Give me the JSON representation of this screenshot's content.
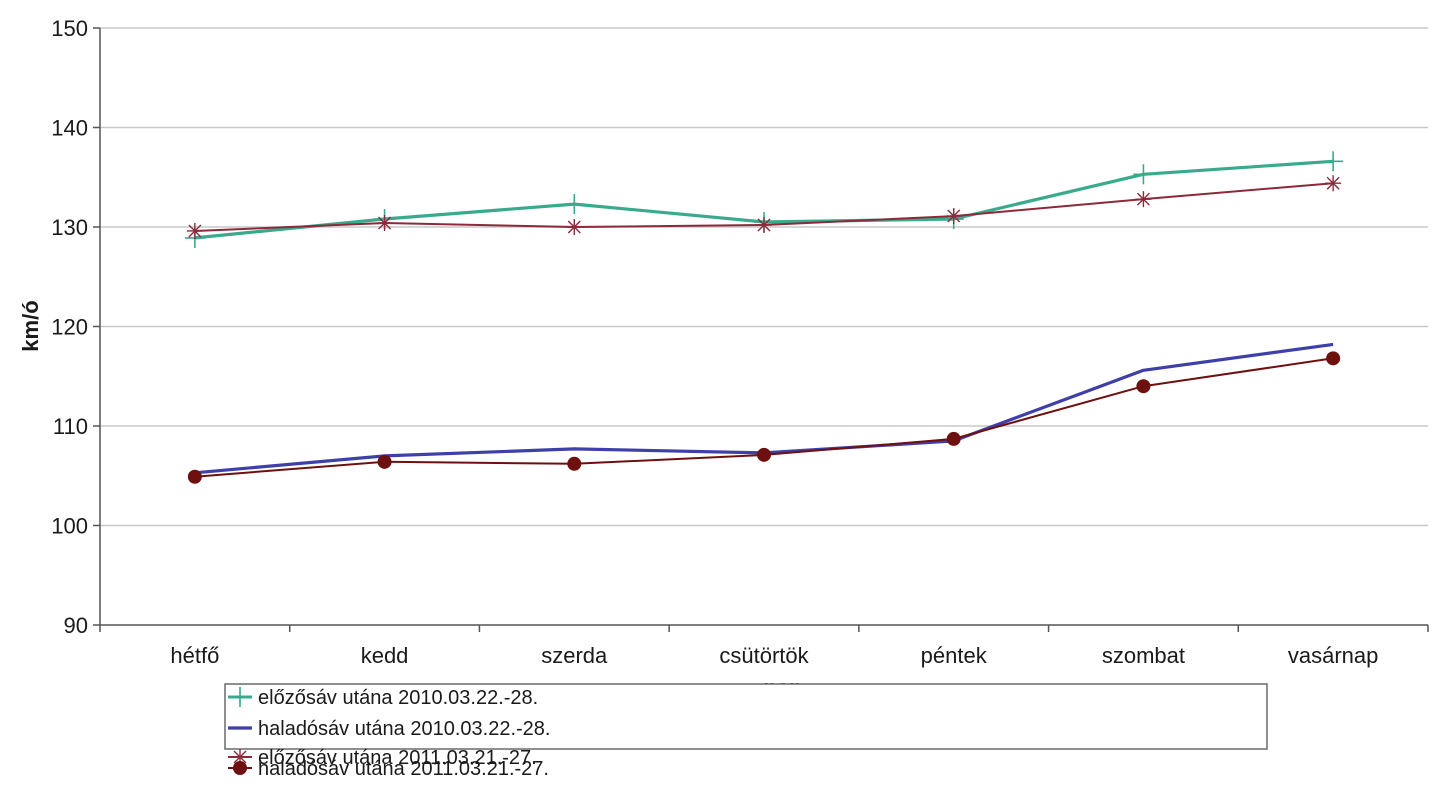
{
  "chart_data": {
    "type": "line",
    "title": "",
    "xlabel": "nap",
    "ylabel": "km/ó",
    "ylim": [
      90,
      150
    ],
    "yticks": [
      90,
      100,
      110,
      120,
      130,
      140,
      150
    ],
    "categories": [
      "hétfő",
      "kedd",
      "szerda",
      "csütörtök",
      "péntek",
      "szombat",
      "vasárnap"
    ],
    "grid": "horizontal",
    "legend_position": "bottom",
    "series": [
      {
        "name": "előzősáv utána 2010.03.22.-28.",
        "values": [
          128.9,
          130.8,
          132.3,
          130.5,
          130.8,
          135.3,
          136.6
        ],
        "color": "#3aaa8c",
        "marker": "plus"
      },
      {
        "name": "haladósáv utána 2010.03.22.-28.",
        "values": [
          105.3,
          107.0,
          107.7,
          107.3,
          108.5,
          115.6,
          118.2
        ],
        "color": "#3f3faa",
        "marker": "none"
      },
      {
        "name": "előzősáv utána 2011.03.21.-27.",
        "values": [
          129.6,
          130.4,
          130.0,
          130.2,
          131.1,
          132.8,
          134.4
        ],
        "color": "#8c2a3c",
        "marker": "star"
      },
      {
        "name": "haladósáv utána 2011.03.21.-27.",
        "values": [
          104.9,
          106.4,
          106.2,
          107.1,
          108.7,
          114.0,
          116.8
        ],
        "color": "#6e1010",
        "marker": "circle"
      }
    ]
  }
}
